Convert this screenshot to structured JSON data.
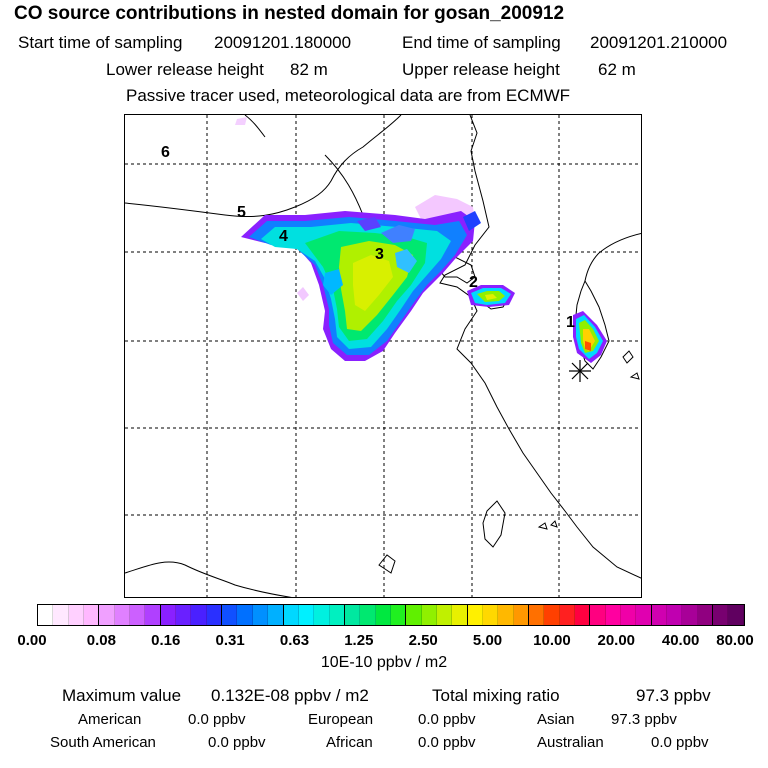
{
  "header": {
    "title": "CO  source contributions in nested domain for gosan_200912",
    "start_label": "Start time of sampling",
    "start_value": "20091201.180000",
    "end_label": "End time of sampling",
    "end_value": "20091201.210000",
    "lower_label": "Lower release height",
    "lower_value": "82 m",
    "upper_label": "Upper release height",
    "upper_value": "62 m",
    "note": "Passive tracer used, meteorological data are from ECMWF"
  },
  "map": {
    "site_labels": [
      "1",
      "2",
      "3",
      "4",
      "5",
      "6"
    ],
    "receptor_marker": "asterisk"
  },
  "colorbar": {
    "ticks": [
      "0.00",
      "0.08",
      "0.16",
      "0.31",
      "0.63",
      "1.25",
      "2.50",
      "5.00",
      "10.00",
      "20.00",
      "40.00",
      "80.00"
    ],
    "units": "10E-10 ppbv / m2",
    "colors": [
      "#ffffff",
      "#ffe8ff",
      "#ffd0ff",
      "#ffb8ff",
      "#f0a0ff",
      "#e080ff",
      "#cc60ff",
      "#b040ff",
      "#8a20ff",
      "#6a20ff",
      "#4a20ff",
      "#2a30ff",
      "#1050ff",
      "#0070ff",
      "#0090ff",
      "#00b0ff",
      "#00d8ff",
      "#00f0ff",
      "#00f0e0",
      "#00f0c0",
      "#00e8a0",
      "#00e870",
      "#00e840",
      "#20f020",
      "#60f000",
      "#90f000",
      "#c0f000",
      "#e8f000",
      "#fff000",
      "#ffd800",
      "#ffb800",
      "#ff9800",
      "#ff7000",
      "#ff4000",
      "#ff2020",
      "#ff0040",
      "#ff0080",
      "#ff00a0",
      "#f000a8",
      "#e000b0",
      "#d000b0",
      "#c000b0",
      "#a80098",
      "#900080",
      "#780070",
      "#600060"
    ]
  },
  "footer": {
    "max_label": "Maximum value",
    "max_value": "0.132E-08 ppbv / m2",
    "total_label": "Total mixing ratio",
    "total_value": "97.3 ppbv",
    "regions": [
      {
        "name": "American",
        "value": "0.0 ppbv"
      },
      {
        "name": "European",
        "value": "0.0 ppbv"
      },
      {
        "name": "Asian",
        "value": "97.3 ppbv"
      },
      {
        "name": "South American",
        "value": "0.0 ppbv"
      },
      {
        "name": "African",
        "value": "0.0 ppbv"
      },
      {
        "name": "Australian",
        "value": "0.0 ppbv"
      }
    ]
  }
}
